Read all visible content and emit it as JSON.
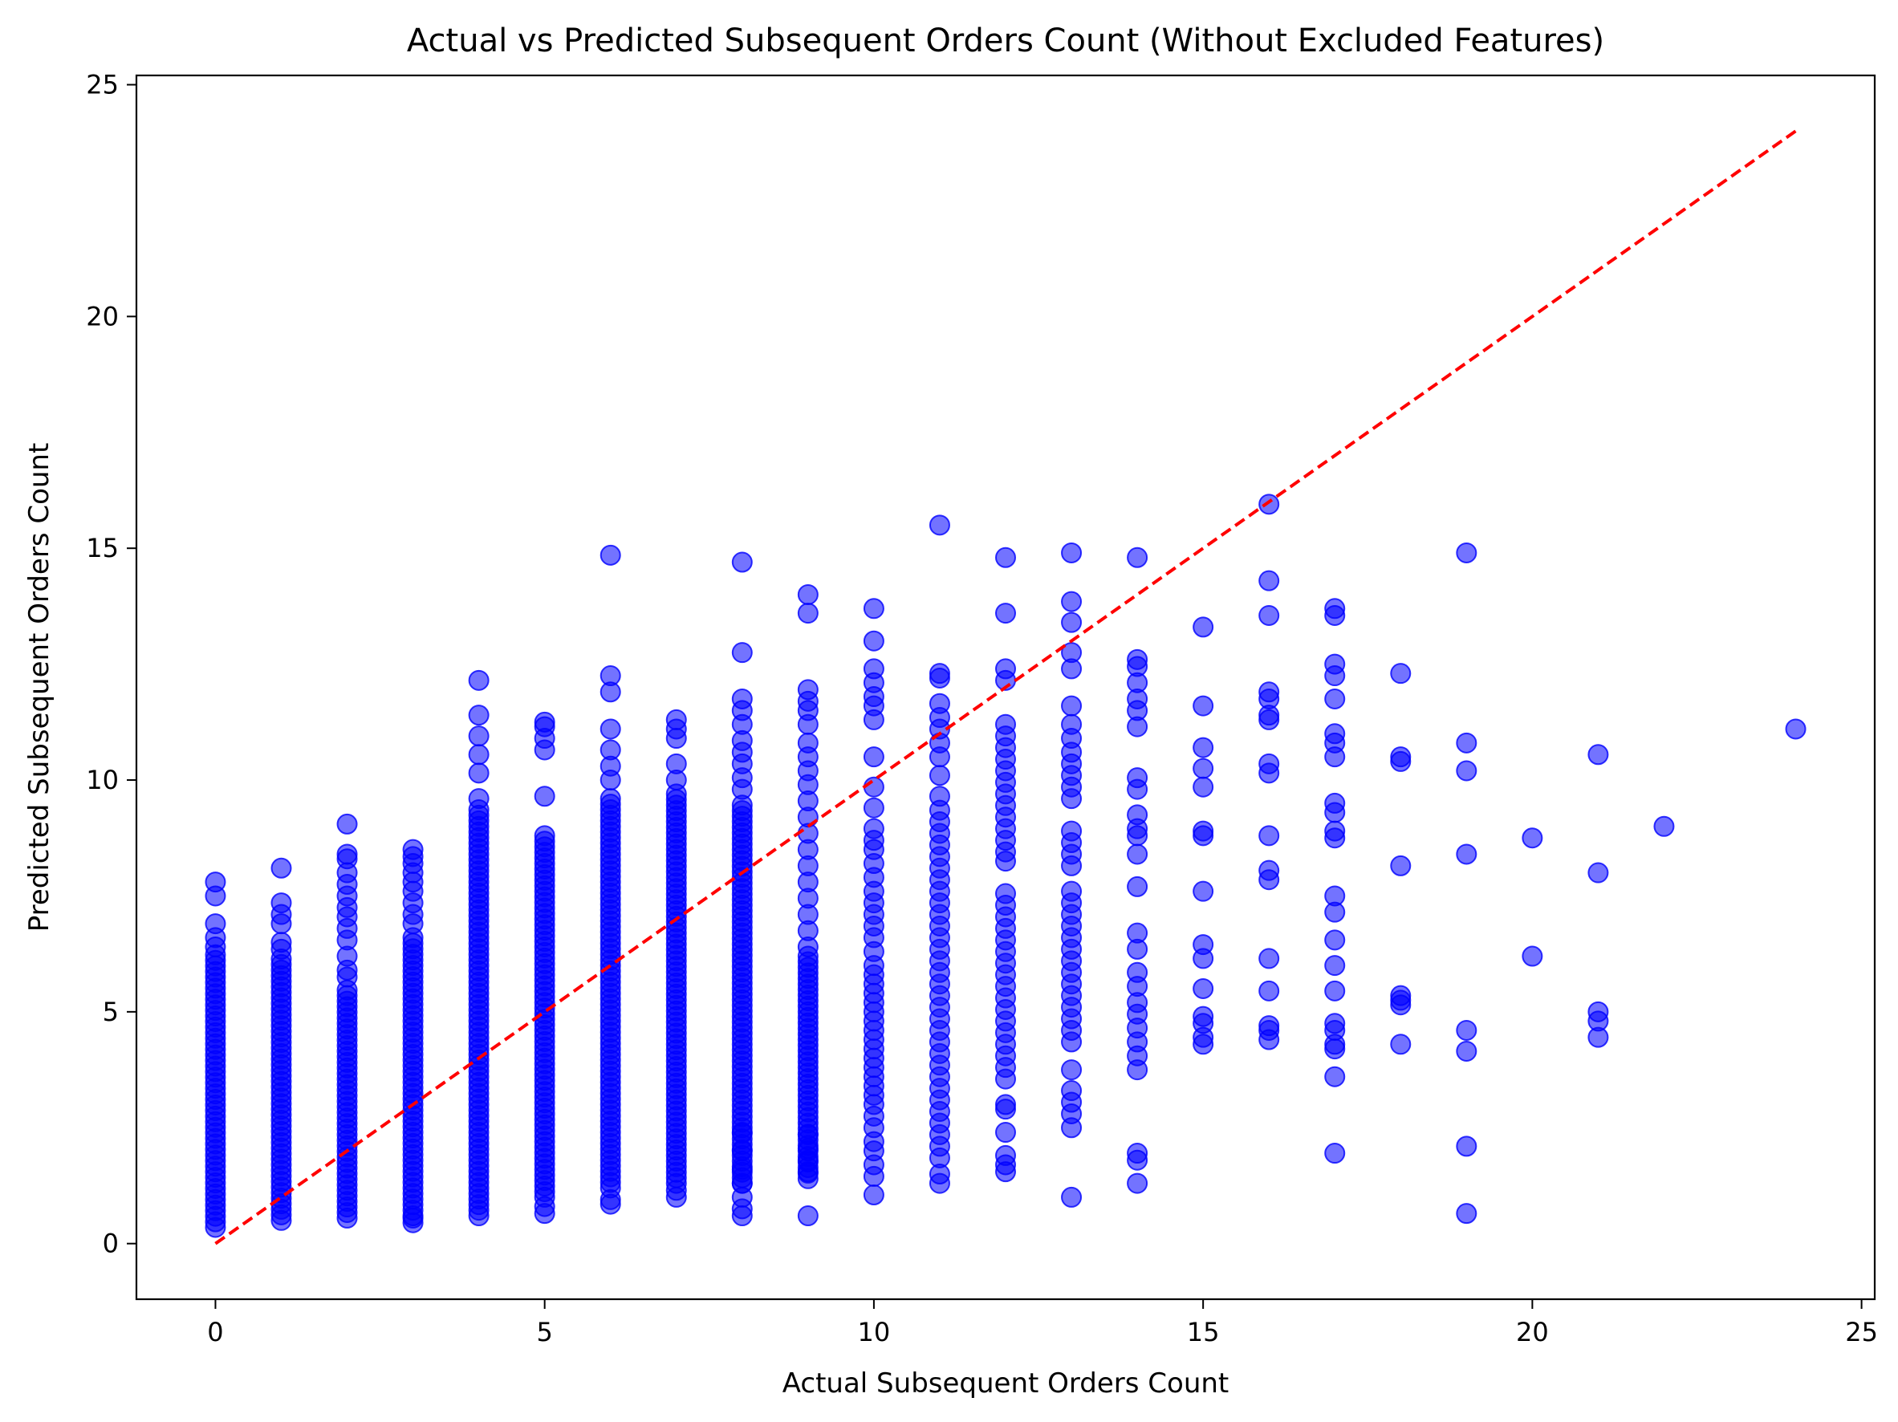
{
  "chart_data": {
    "type": "scatter",
    "title": "Actual vs Predicted Subsequent Orders Count (Without Excluded Features)",
    "xlabel": "Actual Subsequent Orders Count",
    "ylabel": "Predicted Subsequent Orders Count",
    "xlim": [
      -1.2,
      25.2
    ],
    "ylim": [
      -1.2,
      25.2
    ],
    "xticks": [
      0,
      5,
      10,
      15,
      20,
      25
    ],
    "yticks": [
      0,
      5,
      10,
      15,
      20,
      25
    ],
    "grid": false,
    "legend": "none",
    "colors": {
      "points": "#0000ff",
      "reference_line": "#ff0000"
    },
    "reference_line": {
      "style": "dashed",
      "from": [
        0,
        0
      ],
      "to": [
        24,
        24
      ]
    },
    "dense_columns": [
      {
        "x": 0,
        "y_min": 0.35,
        "y_max": 6.3
      },
      {
        "x": 1,
        "y_min": 0.5,
        "y_max": 6.2
      },
      {
        "x": 2,
        "y_min": 0.55,
        "y_max": 5.5
      },
      {
        "x": 3,
        "y_min": 0.6,
        "y_max": 6.6
      },
      {
        "x": 4,
        "y_min": 0.6,
        "y_max": 9.4
      },
      {
        "x": 5,
        "y_min": 1.0,
        "y_max": 8.9
      },
      {
        "x": 6,
        "y_min": 1.2,
        "y_max": 9.7
      },
      {
        "x": 7,
        "y_min": 1.3,
        "y_max": 9.7
      },
      {
        "x": 8,
        "y_min": 1.3,
        "y_max": 9.5
      },
      {
        "x": 9,
        "y_min": 1.4,
        "y_max": 6.2
      }
    ],
    "points": [
      [
        0,
        7.8
      ],
      [
        0,
        7.5
      ],
      [
        0,
        6.9
      ],
      [
        0,
        6.6
      ],
      [
        0,
        6.4
      ],
      [
        1,
        8.1
      ],
      [
        1,
        7.35
      ],
      [
        1,
        7.1
      ],
      [
        1,
        6.9
      ],
      [
        1,
        6.5
      ],
      [
        1,
        6.35
      ],
      [
        2,
        9.05
      ],
      [
        2,
        8.4
      ],
      [
        2,
        8.3
      ],
      [
        2,
        8.0
      ],
      [
        2,
        7.75
      ],
      [
        2,
        7.5
      ],
      [
        2,
        7.25
      ],
      [
        2,
        7.05
      ],
      [
        2,
        6.8
      ],
      [
        2,
        6.55
      ],
      [
        2,
        6.2
      ],
      [
        2,
        5.9
      ],
      [
        2,
        5.75
      ],
      [
        3,
        8.5
      ],
      [
        3,
        8.35
      ],
      [
        3,
        8.2
      ],
      [
        3,
        8.0
      ],
      [
        3,
        7.8
      ],
      [
        3,
        7.6
      ],
      [
        3,
        7.35
      ],
      [
        3,
        7.1
      ],
      [
        3,
        6.9
      ],
      [
        3,
        0.45
      ],
      [
        3,
        0.55
      ],
      [
        4,
        12.15
      ],
      [
        4,
        11.4
      ],
      [
        4,
        10.95
      ],
      [
        4,
        10.55
      ],
      [
        4,
        10.15
      ],
      [
        4,
        9.6
      ],
      [
        5,
        11.25
      ],
      [
        5,
        11.15
      ],
      [
        5,
        10.9
      ],
      [
        5,
        10.65
      ],
      [
        5,
        9.65
      ],
      [
        5,
        0.65
      ],
      [
        5,
        0.8
      ],
      [
        6,
        14.85
      ],
      [
        6,
        12.25
      ],
      [
        6,
        11.9
      ],
      [
        6,
        11.1
      ],
      [
        6,
        10.65
      ],
      [
        6,
        10.3
      ],
      [
        6,
        10.0
      ],
      [
        6,
        0.85
      ],
      [
        6,
        0.95
      ],
      [
        7,
        11.3
      ],
      [
        7,
        11.1
      ],
      [
        7,
        10.9
      ],
      [
        7,
        10.35
      ],
      [
        7,
        10.0
      ],
      [
        7,
        1.0
      ],
      [
        7,
        1.15
      ],
      [
        8,
        14.7
      ],
      [
        8,
        12.75
      ],
      [
        8,
        11.75
      ],
      [
        8,
        11.5
      ],
      [
        8,
        11.2
      ],
      [
        8,
        10.85
      ],
      [
        8,
        10.6
      ],
      [
        8,
        10.35
      ],
      [
        8,
        10.05
      ],
      [
        8,
        9.8
      ],
      [
        8,
        0.6
      ],
      [
        8,
        0.75
      ],
      [
        8,
        1.0
      ],
      [
        8,
        1.3
      ],
      [
        8,
        1.6
      ],
      [
        8,
        2.0
      ],
      [
        8,
        2.4
      ],
      [
        9,
        14.0
      ],
      [
        9,
        13.6
      ],
      [
        9,
        11.95
      ],
      [
        9,
        11.7
      ],
      [
        9,
        11.5
      ],
      [
        9,
        11.2
      ],
      [
        9,
        10.8
      ],
      [
        9,
        10.5
      ],
      [
        9,
        10.2
      ],
      [
        9,
        9.9
      ],
      [
        9,
        9.55
      ],
      [
        9,
        9.2
      ],
      [
        9,
        8.85
      ],
      [
        9,
        8.5
      ],
      [
        9,
        8.15
      ],
      [
        9,
        7.8
      ],
      [
        9,
        7.45
      ],
      [
        9,
        7.1
      ],
      [
        9,
        6.75
      ],
      [
        9,
        6.4
      ],
      [
        9,
        1.55
      ],
      [
        9,
        1.8
      ],
      [
        9,
        2.05
      ],
      [
        9,
        2.35
      ],
      [
        9,
        0.6
      ],
      [
        10,
        13.7
      ],
      [
        10,
        13.0
      ],
      [
        10,
        12.4
      ],
      [
        10,
        12.1
      ],
      [
        10,
        11.8
      ],
      [
        10,
        11.6
      ],
      [
        10,
        11.3
      ],
      [
        10,
        10.5
      ],
      [
        10,
        9.85
      ],
      [
        10,
        9.4
      ],
      [
        10,
        8.95
      ],
      [
        10,
        8.7
      ],
      [
        10,
        8.5
      ],
      [
        10,
        8.2
      ],
      [
        10,
        7.9
      ],
      [
        10,
        7.6
      ],
      [
        10,
        7.35
      ],
      [
        10,
        7.1
      ],
      [
        10,
        6.85
      ],
      [
        10,
        6.6
      ],
      [
        10,
        6.3
      ],
      [
        10,
        6.0
      ],
      [
        10,
        5.8
      ],
      [
        10,
        5.6
      ],
      [
        10,
        5.4
      ],
      [
        10,
        5.2
      ],
      [
        10,
        5.0
      ],
      [
        10,
        4.8
      ],
      [
        10,
        4.6
      ],
      [
        10,
        4.4
      ],
      [
        10,
        4.2
      ],
      [
        10,
        4.0
      ],
      [
        10,
        3.8
      ],
      [
        10,
        3.6
      ],
      [
        10,
        3.4
      ],
      [
        10,
        3.2
      ],
      [
        10,
        3.0
      ],
      [
        10,
        2.75
      ],
      [
        10,
        2.5
      ],
      [
        10,
        2.2
      ],
      [
        10,
        2.0
      ],
      [
        10,
        1.7
      ],
      [
        10,
        1.45
      ],
      [
        10,
        1.05
      ],
      [
        11,
        15.5
      ],
      [
        11,
        12.3
      ],
      [
        11,
        12.2
      ],
      [
        11,
        11.65
      ],
      [
        11,
        11.35
      ],
      [
        11,
        11.1
      ],
      [
        11,
        10.8
      ],
      [
        11,
        10.5
      ],
      [
        11,
        10.1
      ],
      [
        11,
        9.65
      ],
      [
        11,
        9.35
      ],
      [
        11,
        9.1
      ],
      [
        11,
        8.85
      ],
      [
        11,
        8.6
      ],
      [
        11,
        8.35
      ],
      [
        11,
        8.1
      ],
      [
        11,
        7.85
      ],
      [
        11,
        7.6
      ],
      [
        11,
        7.35
      ],
      [
        11,
        7.1
      ],
      [
        11,
        6.85
      ],
      [
        11,
        6.6
      ],
      [
        11,
        6.35
      ],
      [
        11,
        6.1
      ],
      [
        11,
        5.85
      ],
      [
        11,
        5.6
      ],
      [
        11,
        5.35
      ],
      [
        11,
        5.1
      ],
      [
        11,
        4.85
      ],
      [
        11,
        4.6
      ],
      [
        11,
        4.35
      ],
      [
        11,
        4.1
      ],
      [
        11,
        3.85
      ],
      [
        11,
        3.6
      ],
      [
        11,
        3.35
      ],
      [
        11,
        3.1
      ],
      [
        11,
        2.85
      ],
      [
        11,
        2.6
      ],
      [
        11,
        2.35
      ],
      [
        11,
        2.1
      ],
      [
        11,
        1.85
      ],
      [
        11,
        1.5
      ],
      [
        11,
        1.3
      ],
      [
        12,
        14.8
      ],
      [
        12,
        13.6
      ],
      [
        12,
        12.4
      ],
      [
        12,
        12.15
      ],
      [
        12,
        11.2
      ],
      [
        12,
        10.95
      ],
      [
        12,
        10.7
      ],
      [
        12,
        10.45
      ],
      [
        12,
        10.2
      ],
      [
        12,
        9.95
      ],
      [
        12,
        9.7
      ],
      [
        12,
        9.45
      ],
      [
        12,
        9.2
      ],
      [
        12,
        8.95
      ],
      [
        12,
        8.7
      ],
      [
        12,
        8.45
      ],
      [
        12,
        8.25
      ],
      [
        12,
        7.55
      ],
      [
        12,
        7.3
      ],
      [
        12,
        7.05
      ],
      [
        12,
        6.8
      ],
      [
        12,
        6.55
      ],
      [
        12,
        6.3
      ],
      [
        12,
        6.05
      ],
      [
        12,
        5.8
      ],
      [
        12,
        5.55
      ],
      [
        12,
        5.3
      ],
      [
        12,
        5.05
      ],
      [
        12,
        4.8
      ],
      [
        12,
        4.55
      ],
      [
        12,
        4.3
      ],
      [
        12,
        4.05
      ],
      [
        12,
        3.8
      ],
      [
        12,
        3.55
      ],
      [
        12,
        3.0
      ],
      [
        12,
        2.9
      ],
      [
        12,
        2.4
      ],
      [
        12,
        1.9
      ],
      [
        12,
        1.7
      ],
      [
        12,
        1.55
      ],
      [
        13,
        14.9
      ],
      [
        13,
        13.85
      ],
      [
        13,
        13.4
      ],
      [
        13,
        12.75
      ],
      [
        13,
        12.4
      ],
      [
        13,
        11.6
      ],
      [
        13,
        11.2
      ],
      [
        13,
        10.9
      ],
      [
        13,
        10.6
      ],
      [
        13,
        10.35
      ],
      [
        13,
        10.1
      ],
      [
        13,
        9.85
      ],
      [
        13,
        9.6
      ],
      [
        13,
        8.9
      ],
      [
        13,
        8.65
      ],
      [
        13,
        8.4
      ],
      [
        13,
        8.15
      ],
      [
        13,
        7.6
      ],
      [
        13,
        7.35
      ],
      [
        13,
        7.1
      ],
      [
        13,
        6.85
      ],
      [
        13,
        6.6
      ],
      [
        13,
        6.35
      ],
      [
        13,
        6.1
      ],
      [
        13,
        5.85
      ],
      [
        13,
        5.6
      ],
      [
        13,
        5.35
      ],
      [
        13,
        5.1
      ],
      [
        13,
        4.85
      ],
      [
        13,
        4.6
      ],
      [
        13,
        4.35
      ],
      [
        13,
        3.75
      ],
      [
        13,
        3.3
      ],
      [
        13,
        3.05
      ],
      [
        13,
        2.8
      ],
      [
        13,
        2.5
      ],
      [
        13,
        1.0
      ],
      [
        14,
        14.8
      ],
      [
        14,
        12.6
      ],
      [
        14,
        12.45
      ],
      [
        14,
        12.1
      ],
      [
        14,
        11.75
      ],
      [
        14,
        11.5
      ],
      [
        14,
        11.15
      ],
      [
        14,
        10.05
      ],
      [
        14,
        9.8
      ],
      [
        14,
        9.25
      ],
      [
        14,
        8.95
      ],
      [
        14,
        8.8
      ],
      [
        14,
        8.4
      ],
      [
        14,
        7.7
      ],
      [
        14,
        6.7
      ],
      [
        14,
        6.35
      ],
      [
        14,
        5.85
      ],
      [
        14,
        5.55
      ],
      [
        14,
        5.2
      ],
      [
        14,
        4.95
      ],
      [
        14,
        4.65
      ],
      [
        14,
        4.35
      ],
      [
        14,
        4.05
      ],
      [
        14,
        3.75
      ],
      [
        14,
        1.95
      ],
      [
        14,
        1.8
      ],
      [
        14,
        1.3
      ],
      [
        15,
        13.3
      ],
      [
        15,
        11.6
      ],
      [
        15,
        10.7
      ],
      [
        15,
        10.25
      ],
      [
        15,
        9.85
      ],
      [
        15,
        8.9
      ],
      [
        15,
        8.8
      ],
      [
        15,
        7.6
      ],
      [
        15,
        6.45
      ],
      [
        15,
        6.15
      ],
      [
        15,
        5.5
      ],
      [
        15,
        4.9
      ],
      [
        15,
        4.75
      ],
      [
        15,
        4.45
      ],
      [
        15,
        4.3
      ],
      [
        16,
        15.95
      ],
      [
        16,
        14.3
      ],
      [
        16,
        13.55
      ],
      [
        16,
        11.9
      ],
      [
        16,
        11.75
      ],
      [
        16,
        11.4
      ],
      [
        16,
        11.3
      ],
      [
        16,
        10.35
      ],
      [
        16,
        10.15
      ],
      [
        16,
        8.8
      ],
      [
        16,
        8.05
      ],
      [
        16,
        7.85
      ],
      [
        16,
        6.15
      ],
      [
        16,
        5.45
      ],
      [
        16,
        4.7
      ],
      [
        16,
        4.6
      ],
      [
        16,
        4.4
      ],
      [
        17,
        13.7
      ],
      [
        17,
        13.55
      ],
      [
        17,
        12.5
      ],
      [
        17,
        12.25
      ],
      [
        17,
        11.75
      ],
      [
        17,
        11.0
      ],
      [
        17,
        10.8
      ],
      [
        17,
        10.5
      ],
      [
        17,
        9.5
      ],
      [
        17,
        9.3
      ],
      [
        17,
        8.9
      ],
      [
        17,
        8.75
      ],
      [
        17,
        7.5
      ],
      [
        17,
        7.15
      ],
      [
        17,
        6.55
      ],
      [
        17,
        6.0
      ],
      [
        17,
        5.45
      ],
      [
        17,
        4.75
      ],
      [
        17,
        4.6
      ],
      [
        17,
        4.3
      ],
      [
        17,
        4.2
      ],
      [
        17,
        3.6
      ],
      [
        17,
        1.95
      ],
      [
        18,
        12.3
      ],
      [
        18,
        10.5
      ],
      [
        18,
        10.4
      ],
      [
        18,
        8.15
      ],
      [
        18,
        5.35
      ],
      [
        18,
        5.25
      ],
      [
        18,
        5.15
      ],
      [
        18,
        4.3
      ],
      [
        19,
        14.9
      ],
      [
        19,
        10.8
      ],
      [
        19,
        10.2
      ],
      [
        19,
        8.4
      ],
      [
        19,
        4.6
      ],
      [
        19,
        4.15
      ],
      [
        19,
        2.1
      ],
      [
        19,
        0.65
      ],
      [
        20,
        8.75
      ],
      [
        20,
        6.2
      ],
      [
        21,
        10.55
      ],
      [
        21,
        8.0
      ],
      [
        21,
        5.0
      ],
      [
        21,
        4.8
      ],
      [
        21,
        4.45
      ],
      [
        22,
        9.0
      ],
      [
        24,
        11.1
      ]
    ]
  }
}
